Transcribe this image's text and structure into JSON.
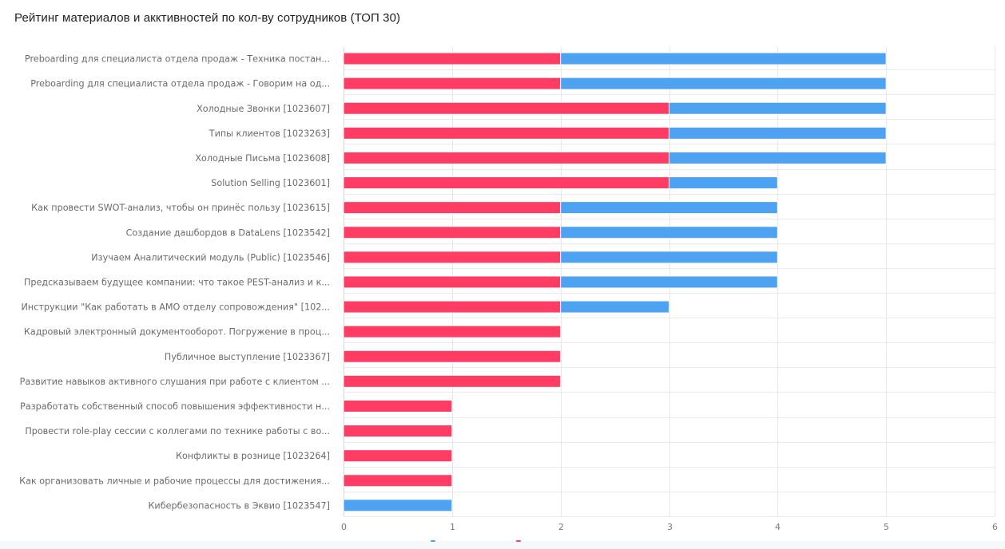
{
  "chart_data": {
    "type": "bar",
    "orientation": "horizontal",
    "stacked": true,
    "title": "Рейтинг материалов и акктивностей по кол-ву сотрудников (ТОП 30)",
    "xlabel": "",
    "ylabel": "",
    "xlim": [
      0,
      6
    ],
    "xticks": [
      "0",
      "1",
      "2",
      "3",
      "4",
      "5",
      "6"
    ],
    "grid": true,
    "legend_position": "bottom (cut off)",
    "categories": [
      "Preboarding для специалиста отдела продаж - Техника постан...",
      "Preboarding для специалиста отдела продаж - Говорим на од...",
      "Холодные Звонки [1023607]",
      "Типы клиентов [1023263]",
      "Холодные Письма [1023608]",
      "Solution Selling [1023601]",
      "Как провести SWOT-анализ, чтобы он принёс пользу [1023615]",
      "Создание дашбордов в DataLens [1023542]",
      "Изучаем Аналитический модуль (Public) [1023546]",
      "Предсказываем будущее компании: что такое PEST-анализ и к...",
      "Инструкции \"Как работать в АМО отделу сопровождения\" [102...",
      "Кадровый электронный документооборот. Погружение в проц...",
      "Публичное выступление [1023367]",
      "Развитие навыков активного слушания при работе с клиентом ...",
      "Разработать собственный способ повышения эффективности н...",
      "Провести role-play сессии с коллегами по технике работы с во...",
      "Конфликты в рознице [1023264]",
      "Как организовать личные и рабочие процессы для достижения...",
      "Кибербезопасность в Эквио [1023547]"
    ],
    "series": [
      {
        "name": "red series",
        "color": "#FF3D64",
        "values": [
          2,
          2,
          3,
          3,
          3,
          3,
          2,
          2,
          2,
          2,
          2,
          2,
          2,
          2,
          1,
          1,
          1,
          1,
          0
        ]
      },
      {
        "name": "blue series",
        "color": "#4DA2F1",
        "values": [
          3,
          3,
          2,
          2,
          2,
          1,
          2,
          2,
          2,
          2,
          1,
          0,
          0,
          0,
          0,
          0,
          0,
          0,
          1
        ]
      }
    ]
  }
}
